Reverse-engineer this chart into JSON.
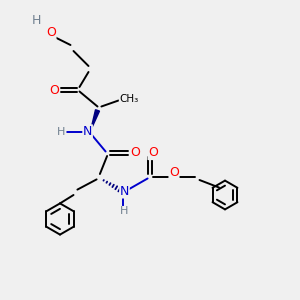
{
  "background_color": "#f0f0f0",
  "atom_colors": {
    "C": "#000000",
    "H": "#708090",
    "N": "#0000cd",
    "O": "#ff0000"
  },
  "fig_width": 3.0,
  "fig_height": 3.0,
  "dpi": 100
}
